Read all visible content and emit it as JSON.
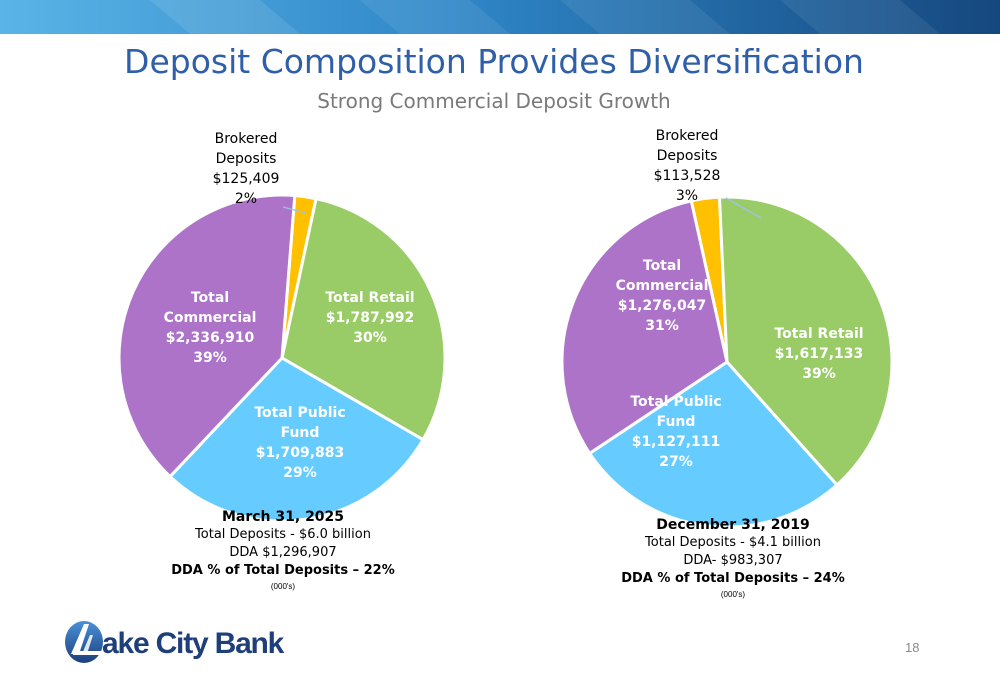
{
  "title": "Deposit Composition Provides Diversification",
  "subtitle": "Strong Commercial Deposit Growth",
  "colors": {
    "retail": "#99cc66",
    "public_fund": "#66ccff",
    "commercial": "#ad73c8",
    "brokered": "#ffc000",
    "title": "#2f5fa8"
  },
  "chart_data": [
    {
      "type": "pie",
      "slices": [
        {
          "label": [
            "Brokered",
            "Deposits"
          ],
          "value": 125409,
          "value_label": "$125,409",
          "percent": 2,
          "percent_label": "2%",
          "color": "#ffc000"
        },
        {
          "label": [
            "Total Retail"
          ],
          "value": 1787992,
          "value_label": "$1,787,992",
          "percent": 30,
          "percent_label": "30%",
          "color": "#99cc66"
        },
        {
          "label": [
            "Total Public",
            "Fund"
          ],
          "value": 1709883,
          "value_label": "$1,709,883",
          "percent": 29,
          "percent_label": "29%",
          "color": "#66ccff"
        },
        {
          "label": [
            "Total",
            "Commercial"
          ],
          "value": 2336910,
          "value_label": "$2,336,910",
          "percent": 39,
          "percent_label": "39%",
          "color": "#ad73c8"
        }
      ],
      "caption": {
        "date": "March 31, 2025",
        "total_deposits": "Total Deposits - $6.0 billion",
        "dda": "DDA $1,296,907",
        "dda_pct": "DDA % of Total Deposits – 22%",
        "units": "(000's)"
      }
    },
    {
      "type": "pie",
      "slices": [
        {
          "label": [
            "Brokered",
            "Deposits"
          ],
          "value": 113528,
          "value_label": "$113,528",
          "percent": 3,
          "percent_label": "3%",
          "color": "#ffc000"
        },
        {
          "label": [
            "Total Retail"
          ],
          "value": 1617133,
          "value_label": "$1,617,133",
          "percent": 39,
          "percent_label": "39%",
          "color": "#99cc66"
        },
        {
          "label": [
            "Total Public",
            "Fund"
          ],
          "value": 1127111,
          "value_label": "$1,127,111",
          "percent": 27,
          "percent_label": "27%",
          "color": "#66ccff"
        },
        {
          "label": [
            "Total",
            "Commercial"
          ],
          "value": 1276047,
          "value_label": "$1,276,047",
          "percent": 31,
          "percent_label": "31%",
          "color": "#ad73c8"
        }
      ],
      "caption": {
        "date": "December 31, 2019",
        "total_deposits": "Total Deposits - $4.1 billion",
        "dda": "DDA- $983,307",
        "dda_pct": "DDA % of Total Deposits – 24%",
        "units": "(000's)"
      }
    }
  ],
  "logo": {
    "text": "ake City Bank"
  },
  "page_number": "18"
}
